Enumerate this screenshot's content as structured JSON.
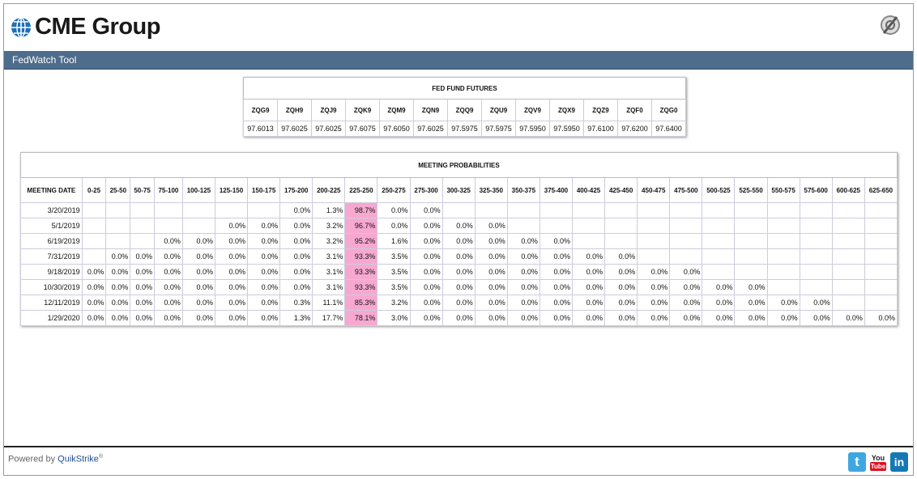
{
  "header": {
    "logo": "CME Group",
    "toolbar_title": "FedWatch Tool"
  },
  "futures": {
    "title": "FED FUND FUTURES",
    "columns": [
      "ZQG9",
      "ZQH9",
      "ZQJ9",
      "ZQK9",
      "ZQM9",
      "ZQN9",
      "ZQQ9",
      "ZQU9",
      "ZQV9",
      "ZQX9",
      "ZQZ9",
      "ZQF0",
      "ZQG0"
    ],
    "values": [
      "97.6013",
      "97.6025",
      "97.6025",
      "97.6075",
      "97.6050",
      "97.6025",
      "97.5975",
      "97.5975",
      "97.5950",
      "97.5950",
      "97.6100",
      "97.6200",
      "97.6400"
    ]
  },
  "probabilities": {
    "title": "MEETING PROBABILITIES",
    "columns": [
      "MEETING DATE",
      "0-25",
      "25-50",
      "50-75",
      "75-100",
      "100-125",
      "125-150",
      "150-175",
      "175-200",
      "200-225",
      "225-250",
      "250-275",
      "275-300",
      "300-325",
      "325-350",
      "350-375",
      "375-400",
      "400-425",
      "425-450",
      "450-475",
      "475-500",
      "500-525",
      "525-550",
      "550-575",
      "575-600",
      "600-625",
      "625-650"
    ],
    "rows": [
      [
        "3/20/2019",
        null,
        null,
        null,
        null,
        null,
        null,
        null,
        "0.0%",
        "1.3%",
        "98.7%",
        "0.0%",
        "0.0%",
        null,
        null,
        null,
        null,
        null,
        null,
        null,
        null,
        null,
        null,
        null,
        null,
        null,
        null
      ],
      [
        "5/1/2019",
        null,
        null,
        null,
        null,
        null,
        "0.0%",
        "0.0%",
        "0.0%",
        "3.2%",
        "96.7%",
        "0.0%",
        "0.0%",
        "0.0%",
        "0.0%",
        null,
        null,
        null,
        null,
        null,
        null,
        null,
        null,
        null,
        null,
        null,
        null
      ],
      [
        "6/19/2019",
        null,
        null,
        null,
        "0.0%",
        "0.0%",
        "0.0%",
        "0.0%",
        "0.0%",
        "3.2%",
        "95.2%",
        "1.6%",
        "0.0%",
        "0.0%",
        "0.0%",
        "0.0%",
        "0.0%",
        null,
        null,
        null,
        null,
        null,
        null,
        null,
        null,
        null,
        null
      ],
      [
        "7/31/2019",
        null,
        "0.0%",
        "0.0%",
        "0.0%",
        "0.0%",
        "0.0%",
        "0.0%",
        "0.0%",
        "3.1%",
        "93.3%",
        "3.5%",
        "0.0%",
        "0.0%",
        "0.0%",
        "0.0%",
        "0.0%",
        "0.0%",
        "0.0%",
        null,
        null,
        null,
        null,
        null,
        null,
        null,
        null
      ],
      [
        "9/18/2019",
        "0.0%",
        "0.0%",
        "0.0%",
        "0.0%",
        "0.0%",
        "0.0%",
        "0.0%",
        "0.0%",
        "3.1%",
        "93.3%",
        "3.5%",
        "0.0%",
        "0.0%",
        "0.0%",
        "0.0%",
        "0.0%",
        "0.0%",
        "0.0%",
        "0.0%",
        "0.0%",
        null,
        null,
        null,
        null,
        null,
        null
      ],
      [
        "10/30/2019",
        "0.0%",
        "0.0%",
        "0.0%",
        "0.0%",
        "0.0%",
        "0.0%",
        "0.0%",
        "0.0%",
        "3.1%",
        "93.3%",
        "3.5%",
        "0.0%",
        "0.0%",
        "0.0%",
        "0.0%",
        "0.0%",
        "0.0%",
        "0.0%",
        "0.0%",
        "0.0%",
        "0.0%",
        "0.0%",
        null,
        null,
        null,
        null
      ],
      [
        "12/11/2019",
        "0.0%",
        "0.0%",
        "0.0%",
        "0.0%",
        "0.0%",
        "0.0%",
        "0.0%",
        "0.3%",
        "11.1%",
        "85.3%",
        "3.2%",
        "0.0%",
        "0.0%",
        "0.0%",
        "0.0%",
        "0.0%",
        "0.0%",
        "0.0%",
        "0.0%",
        "0.0%",
        "0.0%",
        "0.0%",
        "0.0%",
        "0.0%",
        null,
        null
      ],
      [
        "1/29/2020",
        "0.0%",
        "0.0%",
        "0.0%",
        "0.0%",
        "0.0%",
        "0.0%",
        "0.0%",
        "1.3%",
        "17.7%",
        "78.1%",
        "3.0%",
        "0.0%",
        "0.0%",
        "0.0%",
        "0.0%",
        "0.0%",
        "0.0%",
        "0.0%",
        "0.0%",
        "0.0%",
        "0.0%",
        "0.0%",
        "0.0%",
        "0.0%",
        "0.0%",
        "0.0%"
      ]
    ]
  },
  "footer": {
    "powered_by": "Powered by",
    "brand": "QuikStrike",
    "registered": "®",
    "twitter": "t",
    "youtube_top": "You",
    "youtube_bottom": "Tube",
    "linkedin": "in"
  }
}
